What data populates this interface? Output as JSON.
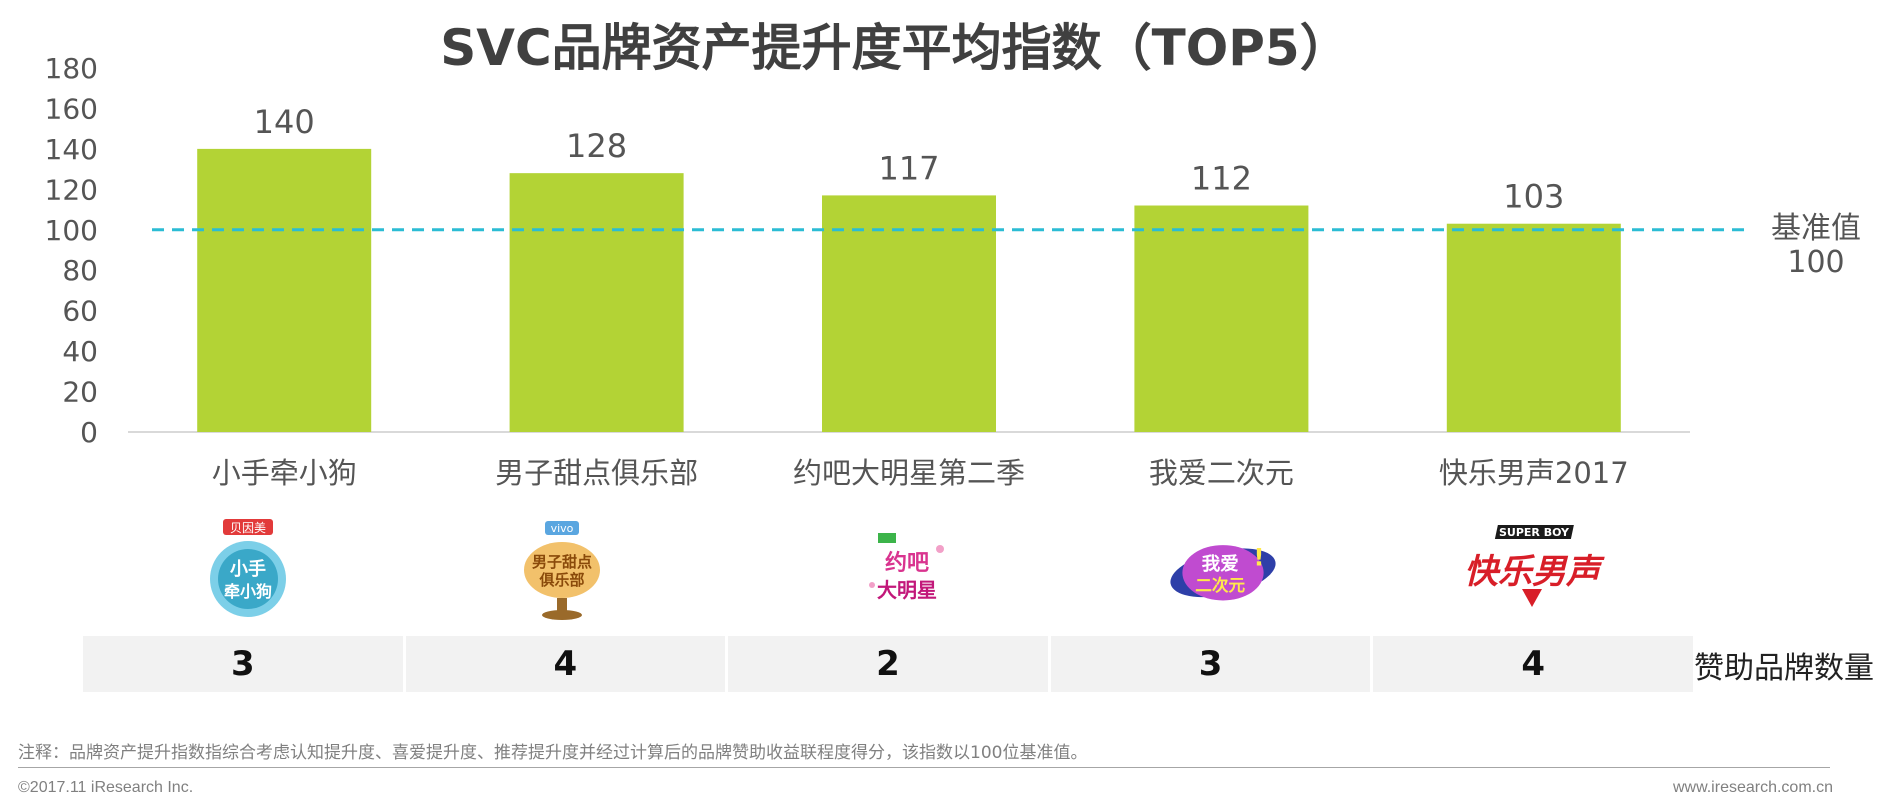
{
  "title": "SVC品牌资产提升度平均指数（TOP5）",
  "chart_data": {
    "type": "bar",
    "categories": [
      "小手牵小狗",
      "男子甜点俱乐部",
      "约吧大明星第二季",
      "我爱二次元",
      "快乐男声2017"
    ],
    "values": [
      140,
      128,
      117,
      112,
      103
    ],
    "yticks": [
      0,
      20,
      40,
      60,
      80,
      100,
      120,
      140,
      160,
      180
    ],
    "ylim": [
      0,
      180
    ],
    "bar_color": "#b3d335",
    "baseline": {
      "value": 100,
      "label_line1": "基准值",
      "label_line2": "100",
      "color": "#2bbcd4"
    }
  },
  "logos": [
    {
      "icon": "beingmate-puppy-show-logo",
      "text": "小手牵小狗",
      "sponsor": "贝因美",
      "color": "#3aa8c8"
    },
    {
      "icon": "vivo-dessert-club-logo",
      "text": "男子甜点俱乐部",
      "sponsor": "vivo",
      "color": "#c8860f"
    },
    {
      "icon": "star-date-logo",
      "text": "约吧大明星",
      "sponsor": "",
      "color": "#d9348f"
    },
    {
      "icon": "i-love-acg-logo",
      "text": "我爱二次元",
      "sponsor": "",
      "color": "#3d56c8"
    },
    {
      "icon": "super-boy-logo",
      "text": "快乐男声",
      "sponsor": "SUPER BOY",
      "color": "#d81e28"
    }
  ],
  "sponsor_counts": [
    "3",
    "4",
    "2",
    "3",
    "4"
  ],
  "sponsor_label": "赞助品牌数量",
  "note": "注释：品牌资产提升指数指综合考虑认知提升度、喜爱提升度、推荐提升度并经过计算后的品牌赞助收益联程度得分，该指数以100位基准值。",
  "copyright": "©2017.11 iResearch Inc.",
  "website": "www.iresearch.com.cn"
}
